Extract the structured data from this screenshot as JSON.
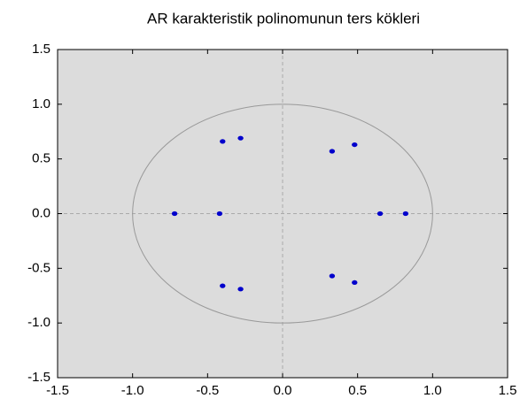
{
  "chart_data": {
    "type": "scatter",
    "title": "AR karakteristik polinomunun ters kökleri",
    "series": [
      {
        "color": "#0000cc",
        "x": [
          -0.4,
          -0.28,
          0.33,
          0.48,
          -0.72,
          -0.42,
          0.65,
          0.82,
          -0.4,
          -0.28,
          0.33,
          0.48
        ],
        "values": [
          0.66,
          0.69,
          0.57,
          0.63,
          0,
          0,
          0,
          0,
          -0.66,
          -0.69,
          -0.57,
          -0.63
        ]
      }
    ],
    "xlim": [
      -1.5,
      1.5
    ],
    "ylim": [
      -1.5,
      1.5
    ],
    "xticks": [
      -1.5,
      {
        "value": -1,
        "label": "-1.0"
      },
      -0.5,
      {
        "value": 0,
        "label": "0.0"
      },
      0.5,
      {
        "value": 1,
        "label": "1.0"
      },
      1.5
    ],
    "yticks": [
      -1.5,
      {
        "value": -1,
        "label": "-1.0"
      },
      -0.5,
      {
        "value": 0,
        "label": "0.0"
      },
      0.5,
      {
        "value": 1,
        "label": "1.0"
      },
      1.5
    ],
    "unit_circle": true,
    "zero_lines": true,
    "background": "#dcdcdc"
  }
}
